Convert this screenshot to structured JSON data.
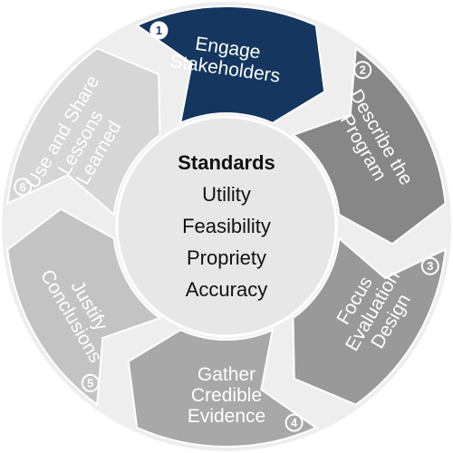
{
  "center": {
    "heading": "Standards",
    "items": [
      "Utility",
      "Feasibility",
      "Propriety",
      "Accuracy"
    ]
  },
  "steps": [
    {
      "number": "1",
      "lines": [
        "Engage",
        "Stakeholders"
      ],
      "active": true
    },
    {
      "number": "2",
      "lines": [
        "Describe the",
        "Program"
      ],
      "active": false
    },
    {
      "number": "3",
      "lines": [
        "Focus",
        "Evaluation",
        "Design"
      ],
      "active": false
    },
    {
      "number": "4",
      "lines": [
        "Gather",
        "Credible",
        "Evidence"
      ],
      "active": false
    },
    {
      "number": "5",
      "lines": [
        "Justify",
        "Conclusions"
      ],
      "active": false
    },
    {
      "number": "6",
      "lines": [
        "Use and Share",
        "Lessons",
        "Learned"
      ],
      "active": false
    }
  ],
  "colors": {
    "ring_bg": "#eeeeee",
    "active": "#14365f",
    "step2": "#878787",
    "step3": "#999999",
    "step4": "#a8a8a8",
    "step5": "#c3c3c3",
    "step6": "#d6d6d6",
    "center": "#e7e7e7"
  }
}
